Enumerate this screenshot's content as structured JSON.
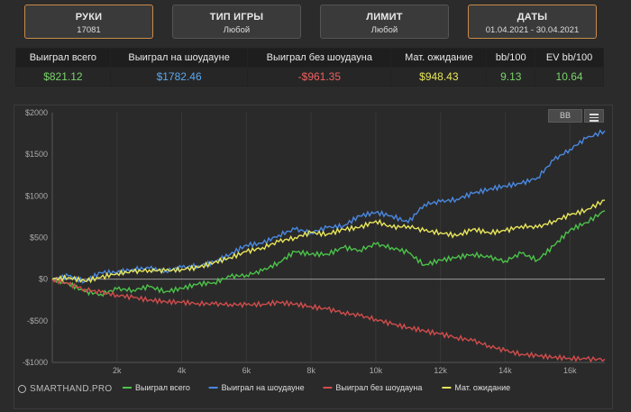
{
  "filters": {
    "hands": {
      "title": "РУКИ",
      "value": "17081"
    },
    "game_type": {
      "title": "ТИП ИГРЫ",
      "value": "Любой"
    },
    "limit": {
      "title": "ЛИМИТ",
      "value": "Любой"
    },
    "dates": {
      "title": "ДАТЫ",
      "value": "01.04.2021 - 30.04.2021"
    }
  },
  "stats": {
    "headers": [
      "Выиграл всего",
      "Выиграл на шоудауне",
      "Выиграл без шоудауна",
      "Мат. ожидание",
      "bb/100",
      "EV bb/100"
    ],
    "values": [
      "$821.12",
      "$1782.46",
      "-$961.35",
      "$948.43",
      "9.13",
      "10.64"
    ]
  },
  "toolbar": {
    "bb_label": "BB"
  },
  "brand": "SMARTHAND.PRO",
  "colors": {
    "green": "#4cc24a",
    "blue": "#4a88e0",
    "red": "#d24c4c",
    "yellow": "#e8e65a"
  },
  "chart_data": {
    "type": "line",
    "xlim": [
      0,
      17081
    ],
    "ylim": [
      -1000,
      2000
    ],
    "yticks": [
      2000,
      1500,
      1000,
      500,
      0,
      -500,
      -1000
    ],
    "ytick_labels": [
      "$2000",
      "$1500",
      "$1000",
      "$500",
      "$0",
      "-$500",
      "-$1000"
    ],
    "xticks": [
      2000,
      4000,
      6000,
      8000,
      10000,
      12000,
      14000,
      16000
    ],
    "xtick_labels": [
      "2k",
      "4k",
      "6k",
      "8k",
      "10k",
      "12k",
      "14k",
      "16k"
    ],
    "grid": "vertical",
    "legend_position": "bottom",
    "series": [
      {
        "name": "Выиграл всего",
        "color": "#4cc24a",
        "x": [
          0,
          500,
          1000,
          1500,
          2000,
          2500,
          3000,
          3500,
          4000,
          4500,
          5000,
          5500,
          6000,
          6500,
          7000,
          7500,
          8000,
          8500,
          9000,
          9500,
          10000,
          10500,
          11000,
          11500,
          12000,
          12500,
          13000,
          13500,
          14000,
          14500,
          15000,
          15500,
          16000,
          16500,
          17081
        ],
        "y": [
          0,
          -50,
          -150,
          -180,
          -120,
          -130,
          -90,
          -150,
          -110,
          -60,
          -40,
          30,
          50,
          100,
          200,
          330,
          300,
          300,
          380,
          350,
          420,
          380,
          320,
          170,
          230,
          260,
          300,
          260,
          220,
          310,
          230,
          400,
          590,
          680,
          821.12
        ]
      },
      {
        "name": "Выиграл на шоудауне",
        "color": "#4a88e0",
        "x": [
          0,
          500,
          1000,
          1500,
          2000,
          2500,
          3000,
          3500,
          4000,
          4500,
          5000,
          5500,
          6000,
          6500,
          7000,
          7500,
          8000,
          8500,
          9000,
          9500,
          10000,
          10500,
          11000,
          11500,
          12000,
          12500,
          13000,
          13500,
          14000,
          14500,
          15000,
          15500,
          16000,
          16500,
          17081
        ],
        "y": [
          0,
          40,
          -30,
          80,
          80,
          120,
          130,
          100,
          140,
          160,
          200,
          300,
          410,
          430,
          530,
          600,
          560,
          620,
          640,
          760,
          800,
          760,
          680,
          900,
          930,
          960,
          1030,
          1080,
          1120,
          1150,
          1220,
          1430,
          1560,
          1690,
          1782.46
        ]
      },
      {
        "name": "Выиграл без шоудауна",
        "color": "#d24c4c",
        "x": [
          0,
          500,
          1000,
          1500,
          2000,
          2500,
          3000,
          3500,
          4000,
          4500,
          5000,
          5500,
          6000,
          6500,
          7000,
          7500,
          8000,
          8500,
          9000,
          9500,
          10000,
          10500,
          11000,
          11500,
          12000,
          12500,
          13000,
          13500,
          14000,
          14500,
          15000,
          15500,
          16000,
          16500,
          17081
        ],
        "y": [
          0,
          -60,
          -120,
          -160,
          -190,
          -220,
          -250,
          -270,
          -280,
          -290,
          -300,
          -300,
          -310,
          -300,
          -280,
          -300,
          -330,
          -360,
          -400,
          -440,
          -480,
          -540,
          -580,
          -620,
          -660,
          -700,
          -740,
          -800,
          -860,
          -900,
          -920,
          -940,
          -950,
          -960,
          -961.35
        ]
      },
      {
        "name": "Мат. ожидание",
        "color": "#e8e65a",
        "x": [
          0,
          500,
          1000,
          1500,
          2000,
          2500,
          3000,
          3500,
          4000,
          4500,
          5000,
          5500,
          6000,
          6500,
          7000,
          7500,
          8000,
          8500,
          9000,
          9500,
          10000,
          10500,
          11000,
          11500,
          12000,
          12500,
          13000,
          13500,
          14000,
          14500,
          15000,
          15500,
          16000,
          16500,
          17081
        ],
        "y": [
          0,
          20,
          -20,
          20,
          70,
          90,
          110,
          100,
          120,
          140,
          200,
          260,
          330,
          380,
          450,
          500,
          560,
          540,
          600,
          620,
          700,
          620,
          640,
          580,
          560,
          520,
          600,
          560,
          580,
          640,
          620,
          700,
          770,
          830,
          948.43
        ]
      }
    ]
  }
}
